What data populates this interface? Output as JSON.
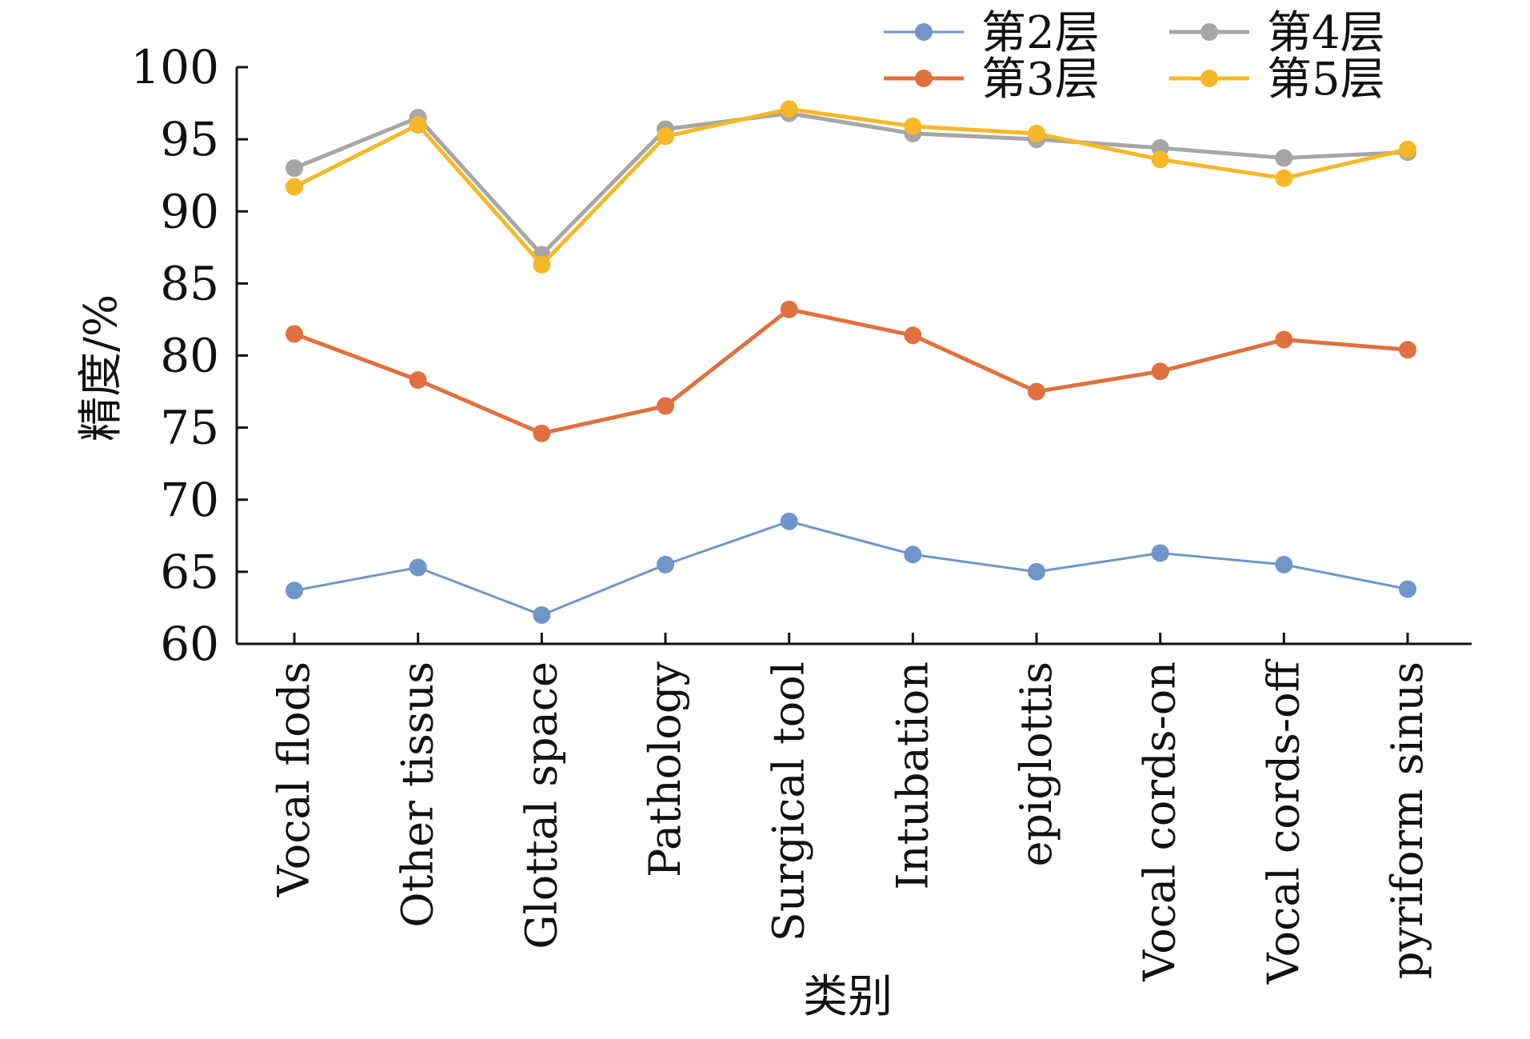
{
  "chart_data": {
    "type": "line",
    "title": "",
    "xlabel": "类别",
    "ylabel": "精度/%",
    "ylim": [
      60,
      100
    ],
    "yticks": [
      60,
      65,
      70,
      75,
      80,
      85,
      90,
      95,
      100
    ],
    "grid": false,
    "legend_position": "top-right",
    "categories": [
      "Vocal flods",
      "Other tissus",
      "Glottal space",
      "Pathology",
      "Surgical tool",
      "Intubation",
      "epiglottis",
      "Vocal cords-on",
      "Vocal cords-off",
      "pyriform sinus"
    ],
    "series": [
      {
        "name": "第2层",
        "color": "#6f95c9",
        "values": [
          63.7,
          65.3,
          62.0,
          65.5,
          68.5,
          66.2,
          65.0,
          66.3,
          65.5,
          63.8
        ]
      },
      {
        "name": "第3层",
        "color": "#e07040",
        "values": [
          81.5,
          78.3,
          74.6,
          76.5,
          83.2,
          81.4,
          77.5,
          78.9,
          81.1,
          80.4
        ]
      },
      {
        "name": "第4层",
        "color": "#a6a6a6",
        "values": [
          93.0,
          96.5,
          87.0,
          95.7,
          96.8,
          95.4,
          95.0,
          94.4,
          93.7,
          94.1
        ]
      },
      {
        "name": "第5层",
        "color": "#f6b828",
        "values": [
          91.7,
          96.0,
          86.3,
          95.2,
          97.1,
          95.9,
          95.4,
          93.6,
          92.3,
          94.3
        ]
      }
    ]
  }
}
